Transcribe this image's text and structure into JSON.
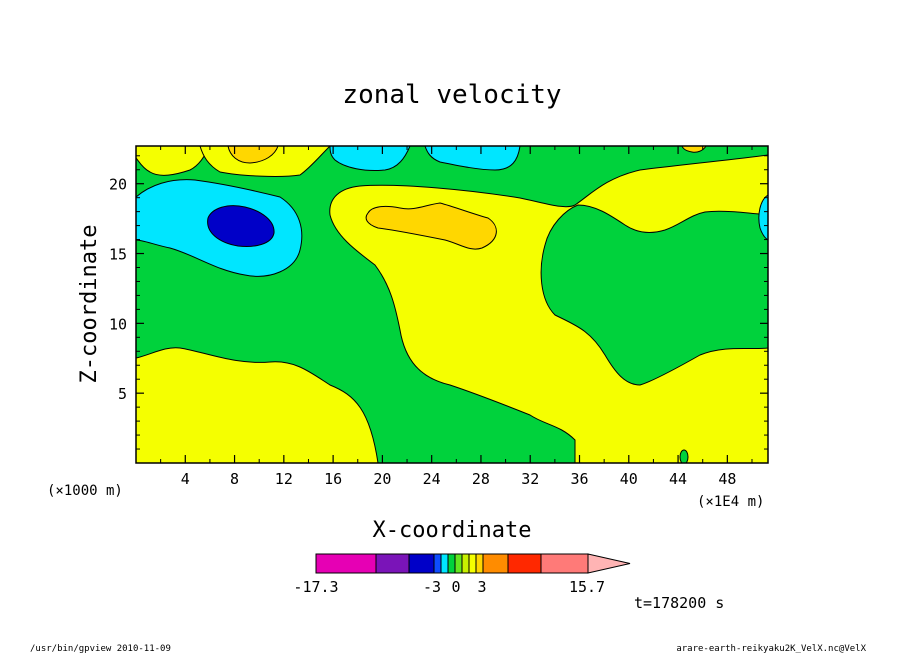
{
  "chart_data": {
    "type": "contour",
    "title": "zonal velocity",
    "xlabel": "X-coordinate",
    "ylabel": "Z-coordinate",
    "x_unit_left": "(×1000 m)",
    "x_unit_right": "(×1E4 m)",
    "x_ticks": [
      "4",
      "8",
      "12",
      "16",
      "20",
      "24",
      "28",
      "32",
      "36",
      "40",
      "44",
      "48"
    ],
    "y_ticks": [
      "5",
      "10",
      "15",
      "20"
    ],
    "xlim": [
      0,
      51.3
    ],
    "ylim": [
      0,
      22.7
    ],
    "grid": false,
    "time_label": "t=178200 s",
    "colorbar": {
      "labels": [
        "-17.3",
        "-3",
        "0",
        "3",
        "15.7"
      ],
      "levels": [
        -17.3,
        -12,
        -7.5,
        -3,
        -2,
        -1,
        0,
        1,
        2,
        3,
        5,
        8.5,
        12,
        15.7
      ],
      "colors": [
        "#e600b4",
        "#7a14b8",
        "#0000c8",
        "#0e4cff",
        "#00e6ff",
        "#00d23c",
        "#64e61e",
        "#c8f000",
        "#f5ff00",
        "#ffd700",
        "#ff8c00",
        "#ff2800",
        "#ff7a78",
        "#ffb4b4"
      ]
    },
    "regions": [
      {
        "name": "0..1",
        "color": "#f5ff00",
        "x": [
          0,
          51.3
        ],
        "y": [
          0,
          8
        ]
      },
      {
        "name": "-1..0",
        "color": "#00d23c",
        "x": [
          0,
          51.3
        ],
        "y": [
          0,
          22.7
        ]
      },
      {
        "name": "1..2 top",
        "color": "#ffd700",
        "x": [
          6,
          11
        ],
        "y": [
          21.5,
          22.7
        ]
      },
      {
        "name": "1..2 middle",
        "color": "#ffd700",
        "x": [
          19,
          30
        ],
        "y": [
          16,
          18.5
        ]
      },
      {
        "name": "-3..-2",
        "color": "#00e6ff",
        "x": [
          0,
          13
        ],
        "y": [
          13.5,
          20.5
        ]
      },
      {
        "name": "-7.5..-3",
        "color": "#0000c8",
        "x": [
          6,
          9
        ],
        "y": [
          16,
          18
        ]
      }
    ]
  },
  "footer": {
    "left": "/usr/bin/gpview   2010-11-09",
    "right": "arare-earth-reikyaku2K_VelX.nc@VelX"
  }
}
